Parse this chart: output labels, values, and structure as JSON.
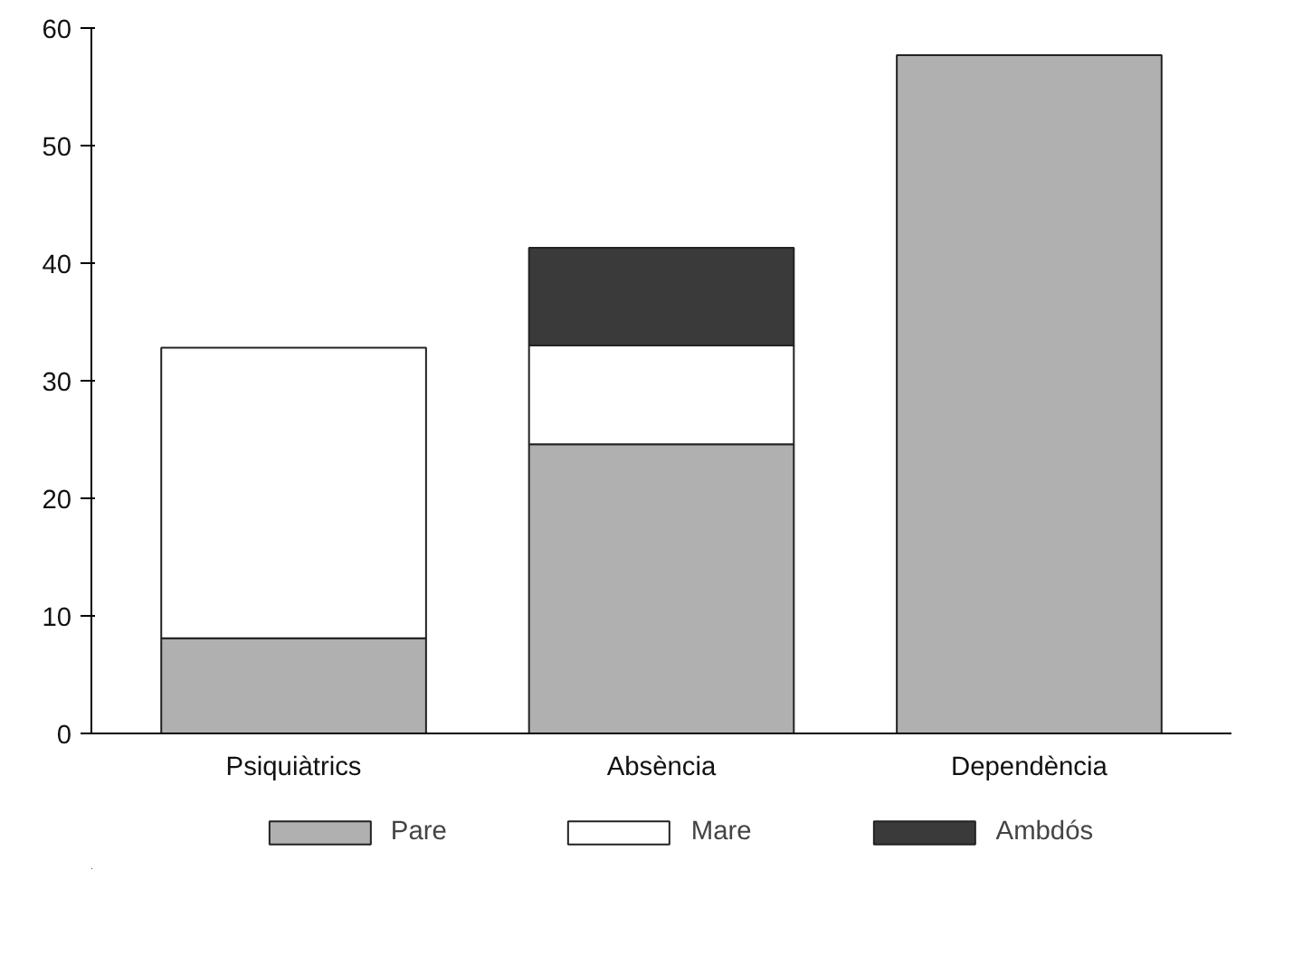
{
  "chart_data": {
    "type": "bar",
    "stacked": true,
    "categories": [
      "Psiquiàtrics",
      "Absència",
      "Dependència"
    ],
    "series": [
      {
        "name": "Pare",
        "color": "#b0b0b0",
        "values": [
          8.1,
          24.6,
          57.7
        ]
      },
      {
        "name": "Mare",
        "color": "#ffffff",
        "values": [
          24.7,
          8.4,
          null
        ]
      },
      {
        "name": "Ambdós",
        "color": "#3a3a3a",
        "values": [
          null,
          8.3,
          null
        ]
      }
    ],
    "ylim": [
      0,
      60
    ],
    "yticks": [
      0,
      10,
      20,
      30,
      40,
      50,
      60
    ],
    "grid": false,
    "legend": "bottom"
  }
}
